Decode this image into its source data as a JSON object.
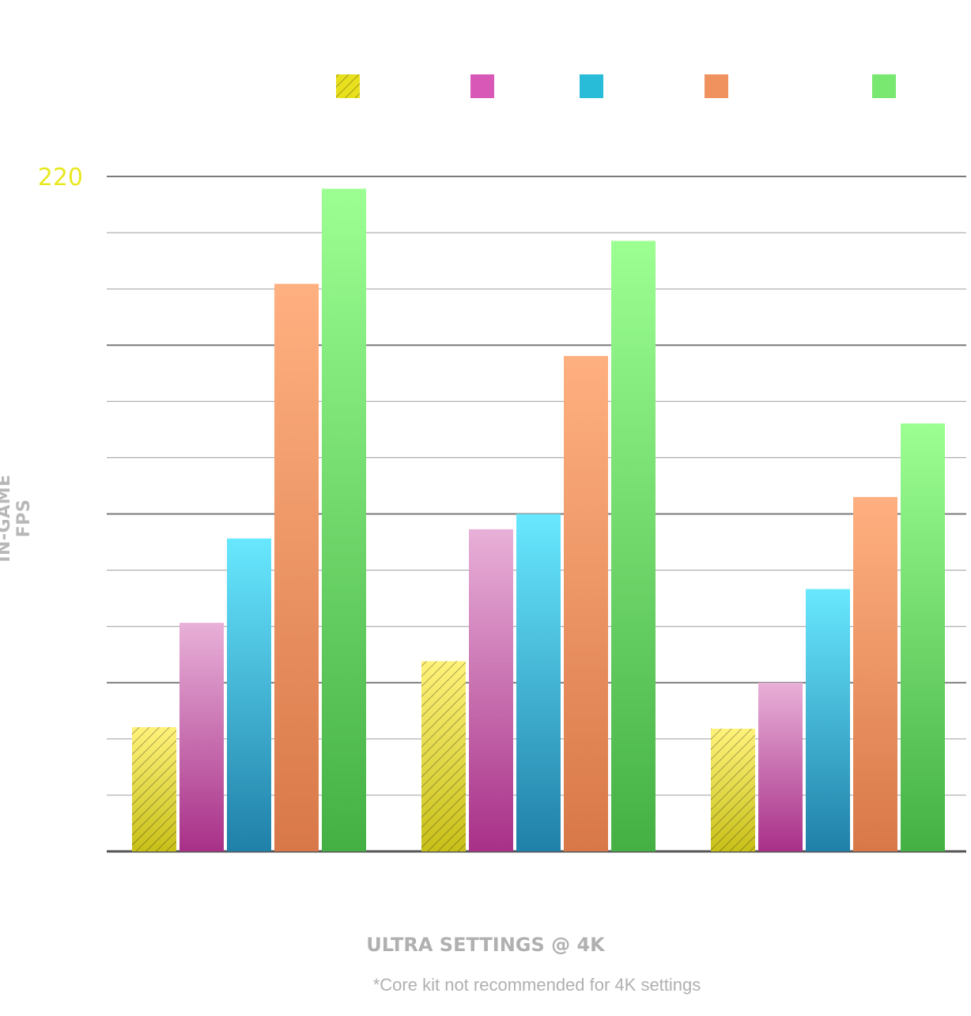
{
  "chart_data": {
    "type": "bar",
    "categories": [
      "",
      "",
      ""
    ],
    "top_tick_label": "220",
    "ylim": [
      0,
      220
    ],
    "grid": true,
    "legend_position": "top",
    "ylabel": "IN-GAME FPS",
    "xlabel": "ULTRA SETTINGS @ 4K",
    "footnote": "*Core kit not recommended for 4K settings",
    "colors": {
      "axis_label": "#b8b8b8",
      "top_tick": "#e8e820",
      "grid": "#888888"
    },
    "series": [
      {
        "values": [
          40.5,
          62,
          40
        ],
        "color_top": "#fff27a",
        "color_bottom": "#c8c018",
        "legend_color": "#e8e01c",
        "hatched": true
      },
      {
        "values": [
          74.5,
          105,
          55
        ],
        "color_top": "#e8b0d8",
        "color_bottom": "#a83088",
        "legend_color": "#d858b8",
        "hatched": false
      },
      {
        "values": [
          102,
          110,
          85.5
        ],
        "color_top": "#68e8ff",
        "color_bottom": "#2080a8",
        "legend_color": "#28bcd8",
        "hatched": false
      },
      {
        "values": [
          185,
          161.5,
          115.5
        ],
        "color_top": "#ffb080",
        "color_bottom": "#d87848",
        "legend_color": "#f0925e",
        "hatched": false
      },
      {
        "values": [
          216,
          199,
          139.5
        ],
        "color_top": "#9cff92",
        "color_bottom": "#44b044",
        "legend_color": "#78e870",
        "hatched": false
      }
    ]
  }
}
